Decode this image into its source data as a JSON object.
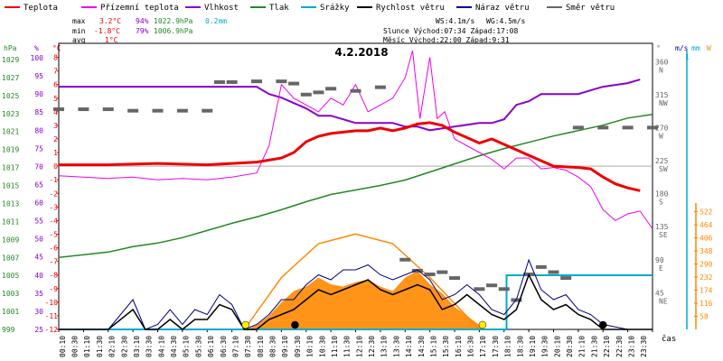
{
  "title": "4.2.2018",
  "colors": {
    "temp": "#ee0000",
    "feel": "#ee00ee",
    "hum": "#8800cc",
    "press": "#228822",
    "precip": "#00aacc",
    "wind": "#000000",
    "gust": "#000088",
    "dir": "#666666",
    "sun": "#ff8800",
    "zero": "#aaaaaa"
  },
  "legend": [
    {
      "label": "Teplota",
      "color": "#ee0000"
    },
    {
      "label": "Přízemní teplota",
      "color": "#ee00ee"
    },
    {
      "label": "Vlhkost",
      "color": "#8800cc"
    },
    {
      "label": "Tlak",
      "color": "#228822"
    },
    {
      "label": "Srážky",
      "color": "#00aacc"
    },
    {
      "label": "Rychlost větru",
      "color": "#000000"
    },
    {
      "label": "Náraz větru",
      "color": "#000088"
    },
    {
      "label": "Směr větru",
      "color": "#666666"
    }
  ],
  "stats": {
    "rows": [
      {
        "k": "max",
        "t": "3.2°C",
        "h": "94%",
        "p": "1022.9hPa",
        "r": "0.2mm"
      },
      {
        "k": "min",
        "t": "-1.8°C",
        "h": "79%",
        "p": "1006.9hPa",
        "r": ""
      },
      {
        "k": "avg",
        "t": "1°C",
        "h": "",
        "p": "",
        "r": ""
      }
    ],
    "ws": "WS:4.1m/s",
    "wg": "WG:4.5m/s",
    "sun": "Slunce Východ:07:34  Západ:17:08",
    "moon": "Měsíc  Východ:22:00  Západ:9:31"
  },
  "axes": {
    "hpa_title": "hPa",
    "pct_title": "%",
    "c_title": "°C",
    "deg_title": "°",
    "ms_title": "m/s",
    "mm_title": "mm",
    "w_title": "W",
    "hpa_ticks": [
      "1029",
      "1027",
      "1025",
      "1023",
      "1021",
      "1019",
      "1017",
      "1015",
      "1013",
      "1011",
      "1009",
      "1007",
      "1005",
      "1003",
      "1001",
      "999"
    ],
    "pct_ticks": [
      "100",
      "95",
      "90",
      "85",
      "80",
      "75",
      "70",
      "65",
      "60",
      "55",
      "50",
      "45",
      "40",
      "35",
      "30",
      "25"
    ],
    "c_ticks": [
      "8",
      "7",
      "6",
      "5",
      "4",
      "3",
      "2",
      "1",
      "0",
      "-1",
      "-2",
      "-3",
      "-4",
      "-5",
      "-6",
      "-7",
      "-8",
      "-9",
      "-10",
      "-11",
      "-12"
    ],
    "dir_ticks": [
      {
        "v": 360,
        "l": "360",
        "d": "N"
      },
      {
        "v": 315,
        "l": "315",
        "d": "NW"
      },
      {
        "v": 270,
        "l": "270",
        "d": "W"
      },
      {
        "v": 225,
        "l": "225",
        "d": "SW"
      },
      {
        "v": 180,
        "l": "180",
        "d": "S"
      },
      {
        "v": 135,
        "l": "135",
        "d": "SE"
      },
      {
        "v": 90,
        "l": "90",
        "d": "E"
      },
      {
        "v": 45,
        "l": "45",
        "d": "NE"
      }
    ],
    "ms_label": "1",
    "w_ticks": [
      "522",
      "464",
      "406",
      "348",
      "290",
      "232",
      "174",
      "116",
      "58"
    ],
    "x_ticks": [
      "00:10",
      "00:30",
      "01:10",
      "01:30",
      "02:10",
      "02:30",
      "03:10",
      "03:30",
      "04:10",
      "04:30",
      "05:10",
      "05:30",
      "06:10",
      "06:30",
      "07:10",
      "07:30",
      "08:10",
      "08:30",
      "09:10",
      "09:30",
      "10:10",
      "10:30",
      "11:10",
      "11:30",
      "12:10",
      "12:30",
      "13:10",
      "13:30",
      "14:10",
      "14:30",
      "15:10",
      "15:30",
      "16:10",
      "16:30",
      "17:10",
      "17:30",
      "18:10",
      "18:30",
      "19:10",
      "19:30",
      "20:10",
      "20:30",
      "21:10",
      "21:30",
      "22:10",
      "22:30",
      "23:10",
      "23:30"
    ],
    "x_title": "čas"
  },
  "chart_data": {
    "type": "line",
    "title": "4.2.2018",
    "x_unit": "hours",
    "temperature_c": [
      [
        0,
        0.1
      ],
      [
        2,
        0.1
      ],
      [
        4,
        0.2
      ],
      [
        6,
        0.1
      ],
      [
        7,
        0.2
      ],
      [
        8,
        0.3
      ],
      [
        9,
        0.6
      ],
      [
        9.5,
        1.0
      ],
      [
        10,
        1.8
      ],
      [
        10.5,
        2.2
      ],
      [
        11,
        2.4
      ],
      [
        11.5,
        2.5
      ],
      [
        12,
        2.6
      ],
      [
        12.5,
        2.6
      ],
      [
        13,
        2.8
      ],
      [
        13.5,
        2.6
      ],
      [
        14,
        2.8
      ],
      [
        14.5,
        3.1
      ],
      [
        15,
        3.2
      ],
      [
        15.5,
        3.0
      ],
      [
        16,
        2.5
      ],
      [
        17,
        1.7
      ],
      [
        17.5,
        2.0
      ],
      [
        18,
        1.6
      ],
      [
        18.5,
        1.2
      ],
      [
        19,
        0.8
      ],
      [
        19.5,
        0.4
      ],
      [
        20,
        0.0
      ],
      [
        21,
        -0.1
      ],
      [
        21.5,
        -0.2
      ],
      [
        22,
        -0.8
      ],
      [
        22.5,
        -1.3
      ],
      [
        23,
        -1.6
      ],
      [
        23.5,
        -1.8
      ]
    ],
    "feels_like_c": [
      [
        0,
        -0.7
      ],
      [
        1,
        -0.8
      ],
      [
        2,
        -0.9
      ],
      [
        3,
        -0.8
      ],
      [
        4,
        -1.0
      ],
      [
        5,
        -0.9
      ],
      [
        6,
        -1.0
      ],
      [
        7,
        -0.8
      ],
      [
        8,
        -0.5
      ],
      [
        8.5,
        1.5
      ],
      [
        9,
        6.0
      ],
      [
        9.5,
        5.0
      ],
      [
        10,
        4.5
      ],
      [
        10.5,
        4.0
      ],
      [
        11,
        5.0
      ],
      [
        11.5,
        4.5
      ],
      [
        12,
        6.0
      ],
      [
        12.5,
        4.0
      ],
      [
        13,
        4.5
      ],
      [
        13.5,
        5.0
      ],
      [
        14,
        6.5
      ],
      [
        14.3,
        8.5
      ],
      [
        14.6,
        3.5
      ],
      [
        15,
        8.0
      ],
      [
        15.3,
        3.5
      ],
      [
        15.6,
        4.0
      ],
      [
        16,
        2.0
      ],
      [
        16.5,
        1.5
      ],
      [
        17,
        1.0
      ],
      [
        17.5,
        0.5
      ],
      [
        18,
        -0.2
      ],
      [
        18.5,
        0.6
      ],
      [
        19,
        0.6
      ],
      [
        19.5,
        -0.2
      ],
      [
        20,
        -0.1
      ],
      [
        20.5,
        -0.3
      ],
      [
        21,
        -0.8
      ],
      [
        21.5,
        -1.5
      ],
      [
        22,
        -3.2
      ],
      [
        22.5,
        -4.0
      ],
      [
        23,
        -3.5
      ],
      [
        23.5,
        -3.3
      ],
      [
        24,
        -4.6
      ]
    ],
    "humidity_pct": [
      [
        0,
        92
      ],
      [
        2,
        92
      ],
      [
        4,
        92
      ],
      [
        5,
        92
      ],
      [
        6,
        92
      ],
      [
        7,
        92
      ],
      [
        8,
        92
      ],
      [
        8.5,
        90
      ],
      [
        9,
        89
      ],
      [
        10,
        86
      ],
      [
        10.5,
        84
      ],
      [
        11,
        84
      ],
      [
        11.5,
        83
      ],
      [
        12,
        82
      ],
      [
        13,
        82
      ],
      [
        13.5,
        82
      ],
      [
        14,
        81
      ],
      [
        14.5,
        81
      ],
      [
        15,
        80
      ],
      [
        16,
        81
      ],
      [
        17,
        82
      ],
      [
        17.5,
        82
      ],
      [
        18,
        83
      ],
      [
        18.5,
        87
      ],
      [
        19,
        88
      ],
      [
        19.5,
        90
      ],
      [
        20,
        90
      ],
      [
        20.5,
        90
      ],
      [
        21,
        90
      ],
      [
        21.5,
        91
      ],
      [
        22,
        92
      ],
      [
        23,
        93
      ],
      [
        23.5,
        94
      ]
    ],
    "pressure_hpa": [
      [
        0,
        1007.0
      ],
      [
        1,
        1007.3
      ],
      [
        2,
        1007.6
      ],
      [
        3,
        1008.2
      ],
      [
        4,
        1008.6
      ],
      [
        5,
        1009.2
      ],
      [
        6,
        1010.0
      ],
      [
        7,
        1010.8
      ],
      [
        8,
        1011.5
      ],
      [
        9,
        1012.3
      ],
      [
        10,
        1013.2
      ],
      [
        11,
        1014.0
      ],
      [
        12,
        1014.5
      ],
      [
        13,
        1015.0
      ],
      [
        14,
        1015.6
      ],
      [
        15,
        1016.5
      ],
      [
        16,
        1017.4
      ],
      [
        17,
        1018.3
      ],
      [
        18,
        1019.1
      ],
      [
        19,
        1019.8
      ],
      [
        20,
        1020.5
      ],
      [
        21,
        1021.1
      ],
      [
        22,
        1021.7
      ],
      [
        23,
        1022.5
      ],
      [
        24,
        1022.9
      ]
    ],
    "wind_speed_ms": [
      [
        0,
        0
      ],
      [
        2,
        0
      ],
      [
        3,
        0.4
      ],
      [
        3.5,
        0
      ],
      [
        4,
        0
      ],
      [
        4.5,
        0.2
      ],
      [
        5,
        0
      ],
      [
        5.5,
        0.2
      ],
      [
        6,
        0.2
      ],
      [
        6.5,
        0.5
      ],
      [
        7,
        0.4
      ],
      [
        7.5,
        0
      ],
      [
        8,
        0
      ],
      [
        8.5,
        0.2
      ],
      [
        9,
        0.3
      ],
      [
        9.5,
        0.4
      ],
      [
        10,
        0.6
      ],
      [
        10.5,
        0.8
      ],
      [
        11,
        0.7
      ],
      [
        11.5,
        0.8
      ],
      [
        12,
        0.9
      ],
      [
        12.5,
        1.0
      ],
      [
        13,
        0.8
      ],
      [
        13.5,
        0.7
      ],
      [
        14,
        0.8
      ],
      [
        14.5,
        0.9
      ],
      [
        15,
        0.8
      ],
      [
        15.5,
        0.4
      ],
      [
        16,
        0.5
      ],
      [
        16.5,
        0.7
      ],
      [
        17,
        0.5
      ],
      [
        17.5,
        0.3
      ],
      [
        18,
        0.2
      ],
      [
        18.5,
        0.4
      ],
      [
        19,
        1.1
      ],
      [
        19.5,
        0.6
      ],
      [
        20,
        0.4
      ],
      [
        20.5,
        0.5
      ],
      [
        21,
        0.3
      ],
      [
        21.5,
        0.2
      ],
      [
        22,
        0.0
      ],
      [
        23,
        0.0
      ],
      [
        24,
        0
      ]
    ],
    "wind_gust_ms": [
      [
        0,
        0
      ],
      [
        2,
        0
      ],
      [
        3,
        0.6
      ],
      [
        3.5,
        0
      ],
      [
        4,
        0.1
      ],
      [
        4.5,
        0.4
      ],
      [
        5,
        0.1
      ],
      [
        5.5,
        0.4
      ],
      [
        6,
        0.3
      ],
      [
        6.5,
        0.7
      ],
      [
        7,
        0.5
      ],
      [
        7.5,
        0
      ],
      [
        8,
        0.1
      ],
      [
        8.5,
        0.3
      ],
      [
        9,
        0.6
      ],
      [
        9.5,
        0.6
      ],
      [
        10,
        0.9
      ],
      [
        10.5,
        1.1
      ],
      [
        11,
        1.0
      ],
      [
        11.5,
        1.2
      ],
      [
        12,
        1.2
      ],
      [
        12.5,
        1.3
      ],
      [
        13,
        1.1
      ],
      [
        13.5,
        1.0
      ],
      [
        14,
        1.1
      ],
      [
        14.5,
        1.2
      ],
      [
        15,
        1.0
      ],
      [
        15.5,
        0.6
      ],
      [
        16,
        0.7
      ],
      [
        16.5,
        0.9
      ],
      [
        17,
        0.7
      ],
      [
        17.5,
        0.4
      ],
      [
        18,
        0.3
      ],
      [
        18.5,
        0.6
      ],
      [
        19,
        1.4
      ],
      [
        19.5,
        0.8
      ],
      [
        20,
        0.6
      ],
      [
        20.5,
        0.7
      ],
      [
        21,
        0.4
      ],
      [
        21.5,
        0.3
      ],
      [
        22,
        0.1
      ],
      [
        23,
        0.0
      ],
      [
        24,
        0
      ]
    ],
    "precip_mm": [
      [
        0,
        0
      ],
      [
        18.1,
        0
      ],
      [
        18.1,
        0.2
      ],
      [
        24,
        0.2
      ]
    ],
    "wind_dir_deg": [
      [
        0,
        300
      ],
      [
        1,
        300
      ],
      [
        2,
        300
      ],
      [
        3,
        298
      ],
      [
        4,
        298
      ],
      [
        5,
        298
      ],
      [
        6,
        298
      ],
      [
        6.5,
        337
      ],
      [
        7,
        337
      ],
      [
        8,
        338
      ],
      [
        9,
        338
      ],
      [
        9.5,
        335
      ],
      [
        10,
        320
      ],
      [
        10.5,
        323
      ],
      [
        11,
        328
      ],
      [
        12,
        325
      ],
      [
        13,
        330
      ],
      [
        14,
        95
      ],
      [
        14.5,
        80
      ],
      [
        15,
        75
      ],
      [
        15.5,
        78
      ],
      [
        16,
        70
      ],
      [
        17,
        55
      ],
      [
        17.5,
        60
      ],
      [
        18,
        55
      ],
      [
        18.5,
        40
      ],
      [
        19,
        75
      ],
      [
        19.5,
        85
      ],
      [
        20,
        78
      ],
      [
        20.5,
        70
      ],
      [
        21,
        275
      ],
      [
        22,
        275
      ],
      [
        23,
        275
      ],
      [
        24,
        275
      ]
    ],
    "solar_w": [
      [
        0,
        0
      ],
      [
        7.6,
        0
      ],
      [
        8,
        20
      ],
      [
        8.5,
        60
      ],
      [
        9,
        120
      ],
      [
        9.5,
        170
      ],
      [
        10,
        190
      ],
      [
        10.5,
        230
      ],
      [
        11,
        200
      ],
      [
        11.5,
        190
      ],
      [
        12,
        210
      ],
      [
        12.5,
        220
      ],
      [
        13,
        190
      ],
      [
        13.5,
        170
      ],
      [
        14,
        230
      ],
      [
        14.5,
        260
      ],
      [
        15,
        200
      ],
      [
        15.5,
        160
      ],
      [
        16,
        100
      ],
      [
        16.5,
        60
      ],
      [
        17,
        20
      ],
      [
        17.2,
        0
      ],
      [
        24,
        0
      ]
    ],
    "sun_path_w": [
      [
        7.5,
        0
      ],
      [
        9,
        230
      ],
      [
        10.5,
        380
      ],
      [
        12,
        423
      ],
      [
        13.5,
        380
      ],
      [
        15,
        230
      ],
      [
        17,
        0
      ]
    ],
    "events": [
      {
        "h": 7.55,
        "kind": "sunrise"
      },
      {
        "h": 9.55,
        "kind": "moonset"
      },
      {
        "h": 17.13,
        "kind": "sunset"
      },
      {
        "h": 22.0,
        "kind": "moonrise"
      }
    ],
    "ranges": {
      "temp": [
        -12,
        8.5
      ],
      "hum": [
        25,
        102
      ],
      "press": [
        999,
        1030
      ],
      "wind": [
        0,
        4
      ],
      "dir": [
        0,
        380
      ],
      "solar": [
        0,
        560
      ]
    }
  }
}
